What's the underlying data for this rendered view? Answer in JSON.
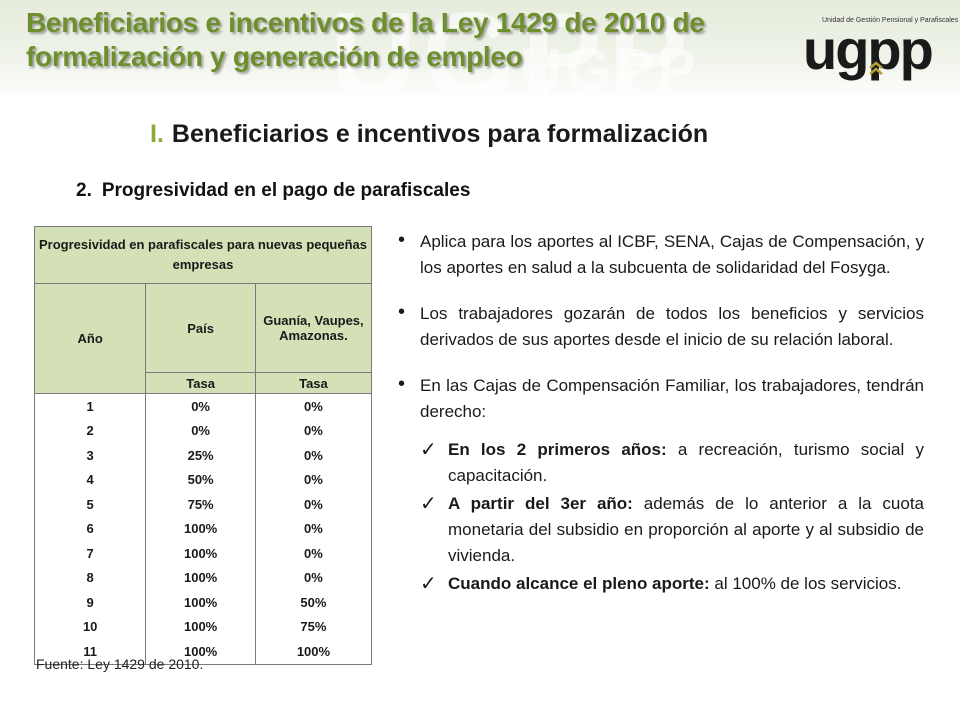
{
  "header": {
    "title": "Beneficiarios e incentivos de la Ley 1429 de 2010 de formalización y generación de empleo",
    "logo_top": "Unidad de Gestión Pensional y Parafiscales",
    "logo": "ugpp",
    "watermark": "UGPP",
    "colors": {
      "title": "#6e8f2d",
      "accent": "#8aab3a",
      "table_header": "#d4e1b6"
    }
  },
  "section": {
    "number": "I.",
    "title": "Beneficiarios e incentivos para formalización"
  },
  "subsection": {
    "number": "2.",
    "title": "Progresividad en el pago de parafiscales"
  },
  "table": {
    "title": "Progresividad en parafiscales  para nuevas pequeñas empresas",
    "col_ano": "Año",
    "col_pais": "País",
    "col_region": "Guanía, Vaupes, Amazonas.",
    "sub_tasa_pais": "Tasa",
    "sub_tasa_region": "Tasa",
    "rows": [
      {
        "ano": "1",
        "pais": "0%",
        "region": "0%"
      },
      {
        "ano": "2",
        "pais": "0%",
        "region": "0%"
      },
      {
        "ano": "3",
        "pais": "25%",
        "region": "0%"
      },
      {
        "ano": "4",
        "pais": "50%",
        "region": "0%"
      },
      {
        "ano": "5",
        "pais": "75%",
        "region": "0%"
      },
      {
        "ano": "6",
        "pais": "100%",
        "region": "0%"
      },
      {
        "ano": "7",
        "pais": "100%",
        "region": "0%"
      },
      {
        "ano": "8",
        "pais": "100%",
        "region": "0%"
      },
      {
        "ano": "9",
        "pais": "100%",
        "region": "50%"
      },
      {
        "ano": "10",
        "pais": "100%",
        "region": "75%"
      },
      {
        "ano": "11",
        "pais": "100%",
        "region": "100%"
      }
    ],
    "source": "Fuente: Ley 1429 de 2010."
  },
  "bullets": [
    "Aplica para los aportes al ICBF, SENA, Cajas de Compensación, y los aportes en salud a la subcuenta de solidaridad del Fosyga.",
    "Los trabajadores gozarán de todos los beneficios y servicios derivados de sus aportes desde el inicio de su relación laboral.",
    "En las Cajas de Compensación Familiar, los trabajadores, tendrán derecho:"
  ],
  "checks": [
    {
      "bold": "En los 2 primeros años:",
      "text": " a recreación, turismo social y capacitación."
    },
    {
      "bold": "A partir del 3er año:",
      "text": " además de lo anterior a la cuota monetaria del subsidio en proporción al aporte y al subsidio de vivienda."
    },
    {
      "bold": "Cuando alcance el pleno aporte:",
      "text": " al 100% de los servicios."
    }
  ],
  "check_icon": "check-mark-icon"
}
